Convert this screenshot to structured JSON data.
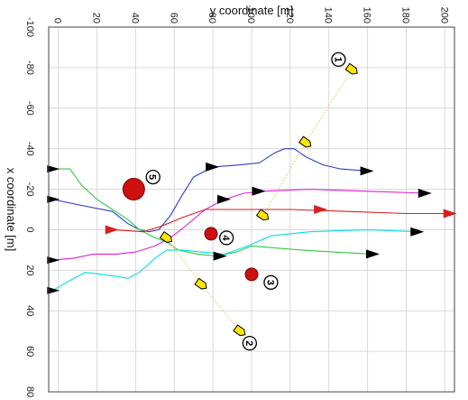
{
  "chart_data": {
    "type": "line",
    "xlabel": "y coordinate [m]",
    "ylabel": "x coordinate [m]",
    "xlim": [
      -5,
      205
    ],
    "ylim": [
      -100,
      80
    ],
    "y_reversed": false,
    "x_ticks": [
      0,
      20,
      40,
      60,
      80,
      100,
      120,
      140,
      160,
      180,
      200
    ],
    "x_tick_labels": [
      "0",
      "20",
      "40",
      "60",
      "80",
      "100",
      "120",
      "140",
      "160",
      "180",
      "200"
    ],
    "y_ticks": [
      -100,
      -80,
      -60,
      -40,
      -20,
      0,
      20,
      40,
      60,
      80
    ],
    "y_tick_labels": [
      "-100",
      "-80",
      "-60",
      "-40",
      "-20",
      "0",
      "20",
      "40",
      "60",
      "80"
    ],
    "grid": true,
    "series": [
      {
        "color": "#2f3fbf",
        "points": [
          [
            -3,
            -15
          ],
          [
            12,
            -12
          ],
          [
            28,
            -9
          ],
          [
            36,
            -3
          ],
          [
            42,
            0
          ],
          [
            47,
            1
          ],
          [
            52,
            0
          ],
          [
            58,
            -7
          ],
          [
            64,
            -17
          ],
          [
            70,
            -26
          ],
          [
            80,
            -31
          ],
          [
            94,
            -32
          ],
          [
            104,
            -33
          ],
          [
            112,
            -38
          ],
          [
            117,
            -40
          ],
          [
            122,
            -40
          ],
          [
            128,
            -36
          ],
          [
            137,
            -32
          ],
          [
            146,
            -30
          ],
          [
            160,
            -29
          ]
        ]
      },
      {
        "color": "#2ecc40",
        "points": [
          [
            -3,
            -30
          ],
          [
            6,
            -30
          ],
          [
            12,
            -22
          ],
          [
            20,
            -15
          ],
          [
            28,
            -10
          ],
          [
            36,
            -5
          ],
          [
            42,
            0
          ],
          [
            50,
            4
          ],
          [
            56,
            6
          ],
          [
            62,
            10
          ],
          [
            72,
            12
          ],
          [
            82,
            13
          ],
          [
            92,
            11
          ],
          [
            100,
            8
          ],
          [
            112,
            9
          ],
          [
            126,
            10
          ],
          [
            142,
            11
          ],
          [
            163,
            12
          ]
        ]
      },
      {
        "color": "#00e0e0",
        "points": [
          [
            -3,
            30
          ],
          [
            6,
            25
          ],
          [
            14,
            21
          ],
          [
            22,
            22
          ],
          [
            30,
            23
          ],
          [
            36,
            24
          ],
          [
            42,
            21
          ],
          [
            50,
            14
          ],
          [
            56,
            10
          ],
          [
            64,
            10
          ],
          [
            74,
            11
          ],
          [
            86,
            12
          ],
          [
            98,
            8
          ],
          [
            110,
            3
          ],
          [
            130,
            1
          ],
          [
            160,
            0
          ],
          [
            186,
            1
          ]
        ]
      },
      {
        "color": "#e020d8",
        "points": [
          [
            -3,
            15
          ],
          [
            8,
            14
          ],
          [
            18,
            12
          ],
          [
            30,
            12
          ],
          [
            40,
            11
          ],
          [
            50,
            8
          ],
          [
            58,
            4
          ],
          [
            66,
            -2
          ],
          [
            76,
            -10
          ],
          [
            86,
            -15
          ],
          [
            96,
            -18
          ],
          [
            106,
            -19
          ],
          [
            130,
            -20
          ],
          [
            160,
            -19
          ],
          [
            190,
            -18
          ]
        ]
      },
      {
        "color": "#d42020",
        "points": [
          [
            28,
            0
          ],
          [
            44,
            1
          ],
          [
            54,
            -2
          ],
          [
            64,
            -6
          ],
          [
            76,
            -10
          ],
          [
            90,
            -10
          ],
          [
            104,
            -10
          ],
          [
            120,
            -10
          ],
          [
            150,
            -9
          ],
          [
            180,
            -8
          ],
          [
            203,
            -8
          ]
        ]
      },
      {
        "color": "#f0d070",
        "dashed": true,
        "points": [
          [
            152,
            -79
          ],
          [
            128,
            -43
          ],
          [
            106,
            -7
          ]
        ]
      },
      {
        "color": "#f0d070",
        "dashed": true,
        "points": [
          [
            56,
            4
          ],
          [
            74,
            27
          ],
          [
            94,
            50
          ]
        ]
      }
    ],
    "start_markers": [
      {
        "x": -3,
        "y": -30
      },
      {
        "x": -3,
        "y": -15
      },
      {
        "x": -3,
        "y": 15
      },
      {
        "x": -3,
        "y": 30
      }
    ],
    "end_arrows": [
      {
        "x": 160,
        "y": -29,
        "color": "#000"
      },
      {
        "x": 190,
        "y": -18,
        "color": "#000"
      },
      {
        "x": 186,
        "y": 1,
        "color": "#000"
      },
      {
        "x": 163,
        "y": 12,
        "color": "#000"
      },
      {
        "x": 203,
        "y": -8,
        "color": "#d42020"
      },
      {
        "x": 136,
        "y": -10,
        "color": "#d42020"
      },
      {
        "x": 28,
        "y": 0,
        "color": "#d42020"
      },
      {
        "x": 86,
        "y": -15,
        "color": "#000"
      },
      {
        "x": 80,
        "y": -31,
        "color": "#000"
      },
      {
        "x": 104,
        "y": -19,
        "color": "#000"
      },
      {
        "x": 84,
        "y": 13,
        "color": "#000"
      }
    ],
    "yellow_markers": [
      {
        "x": 152,
        "y": -79
      },
      {
        "x": 128,
        "y": -43
      },
      {
        "x": 106,
        "y": -7
      },
      {
        "x": 56,
        "y": 4
      },
      {
        "x": 74,
        "y": 27
      },
      {
        "x": 94,
        "y": 50
      }
    ],
    "red_circles": [
      {
        "x": 39,
        "y": -20,
        "size": "large"
      },
      {
        "x": 79,
        "y": 2,
        "size": "small"
      },
      {
        "x": 100,
        "y": 22,
        "size": "small"
      }
    ],
    "labels": [
      {
        "text": "1",
        "x": 145,
        "y": -84
      },
      {
        "text": "2",
        "x": 99,
        "y": 56
      },
      {
        "text": "3",
        "x": 110,
        "y": 26
      },
      {
        "text": "4",
        "x": 87,
        "y": 4
      },
      {
        "text": "5",
        "x": 49,
        "y": -26
      }
    ]
  }
}
